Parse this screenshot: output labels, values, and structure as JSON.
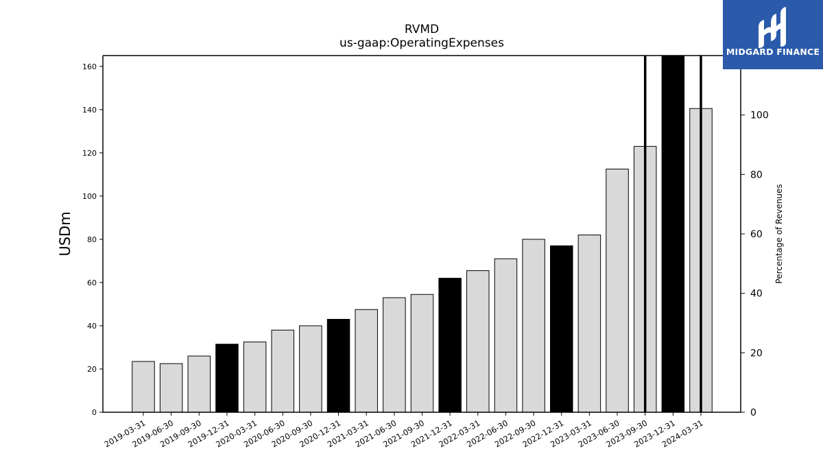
{
  "logo": {
    "text": "MIDGARD FINANCE",
    "icon": "midgard-logo-icon",
    "background": "#2b5aab"
  },
  "chart_data": {
    "type": "bar",
    "title": "RVMD",
    "subtitle": "us-gaap:OperatingExpenses",
    "ylabel": "USDm",
    "y2label": "Percentage of Revenues",
    "ylim": [
      0,
      165
    ],
    "y2lim": [
      0,
      120
    ],
    "yticks": [
      0,
      20,
      40,
      60,
      80,
      100,
      120,
      140,
      160
    ],
    "y2ticks": [
      0,
      20,
      40,
      60,
      80,
      100
    ],
    "grid": false,
    "categories": [
      "2019-03-31",
      "2019-06-30",
      "2019-09-30",
      "2019-12-31",
      "2020-03-31",
      "2020-06-30",
      "2020-09-30",
      "2020-12-31",
      "2021-03-31",
      "2021-06-30",
      "2021-09-30",
      "2021-12-31",
      "2022-03-31",
      "2022-06-30",
      "2022-09-30",
      "2022-12-31",
      "2023-03-31",
      "2023-06-30",
      "2023-09-30",
      "2023-12-31",
      "2024-03-31"
    ],
    "values": [
      23.5,
      22.5,
      26,
      31.5,
      32.5,
      38,
      40,
      43,
      47.5,
      53,
      54.5,
      62,
      65.5,
      71,
      80,
      77,
      82,
      112.5,
      123,
      165,
      140.5
    ],
    "highlight_color": "#000000",
    "bar_color": "#d9d9d9",
    "highlighted_categories": [
      "2019-12-31",
      "2020-12-31",
      "2021-12-31",
      "2022-12-31",
      "2023-12-31"
    ],
    "vertical_markers": [
      "2023-09-30",
      "2024-03-31"
    ]
  }
}
